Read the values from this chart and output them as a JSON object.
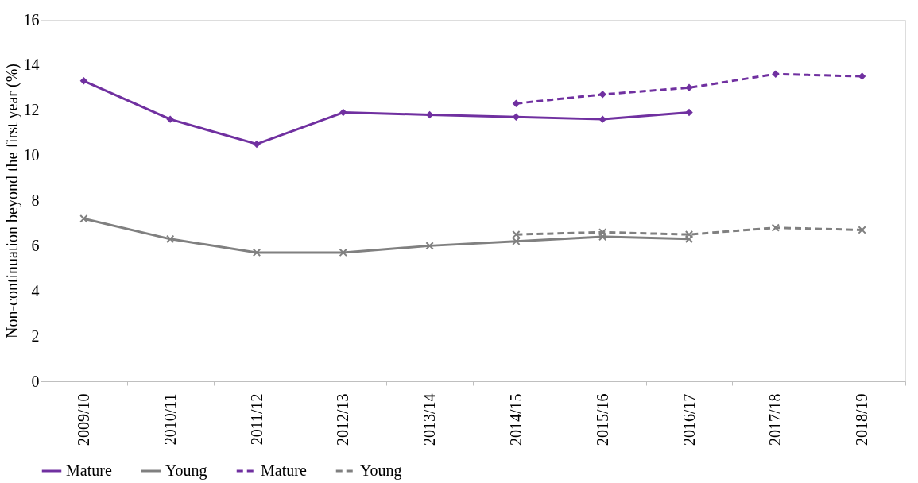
{
  "chart_data": {
    "type": "line",
    "ylabel": "Non-continuation beyond the first year (%)",
    "categories": [
      "2009/10",
      "2010/11",
      "2011/12",
      "2012/13",
      "2013/14",
      "2014/15",
      "2015/16",
      "2016/17",
      "2017/18",
      "2018/19"
    ],
    "ylim": [
      0,
      16
    ],
    "yticks": [
      0,
      2,
      4,
      6,
      8,
      10,
      12,
      14,
      16
    ],
    "grid": false,
    "legend": "bottom",
    "series": [
      {
        "name": "Mature",
        "color": "#7030a0",
        "marker": "diamond",
        "line_style": "solid",
        "values": [
          13.3,
          11.6,
          10.5,
          11.9,
          11.8,
          11.7,
          11.6,
          11.9,
          null,
          null
        ]
      },
      {
        "name": "Young",
        "color": "#808080",
        "marker": "cross",
        "line_style": "solid",
        "values": [
          7.2,
          6.3,
          5.7,
          5.7,
          6.0,
          6.2,
          6.4,
          6.3,
          null,
          null
        ]
      },
      {
        "name": "Mature",
        "color": "#7030a0",
        "marker": "diamond",
        "line_style": "dashed",
        "values": [
          null,
          null,
          null,
          null,
          null,
          12.3,
          12.7,
          13.0,
          13.6,
          13.5
        ]
      },
      {
        "name": "Young",
        "color": "#808080",
        "marker": "cross",
        "line_style": "dashed",
        "values": [
          null,
          null,
          null,
          null,
          null,
          6.5,
          6.6,
          6.5,
          6.8,
          6.7
        ]
      }
    ]
  }
}
